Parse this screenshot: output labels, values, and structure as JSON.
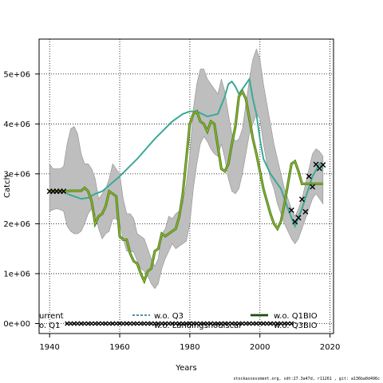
{
  "chart_data": {
    "type": "line",
    "xlabel": "Years",
    "ylabel": "Catch",
    "xlim": [
      1937,
      2021
    ],
    "ylim": [
      -200000,
      5700000
    ],
    "x_ticks": [
      1940,
      1960,
      1980,
      2000,
      2020
    ],
    "x_tick_labels": [
      "1940",
      "1960",
      "1980",
      "2000",
      "2020"
    ],
    "y_ticks": [
      0,
      1000000,
      2000000,
      3000000,
      4000000,
      5000000
    ],
    "y_tick_labels": [
      "0e+00",
      "1e+06",
      "2e+06",
      "3e+06",
      "4e+06",
      "5e+06"
    ],
    "grid": true,
    "colors": {
      "band": "#bebebe",
      "band_edge": "#8f8f8f",
      "median": "#4a8a2e",
      "median_core": "#b5b51e",
      "current_teal": "#3aaa96",
      "q3_dash": "#1a6b8a",
      "cross": "#000000"
    },
    "legend_labels": {
      "current": "urrent",
      "q1": "o. Q1",
      "q3": "w.o. Q3",
      "q1bio": "w.o. Q1BIO",
      "landings": "w.o. Landingsnodiscar",
      "q3bio": "w.o. Q3BIO"
    },
    "series": [
      {
        "key": "band",
        "x": [
          1940,
          1941,
          1942,
          1943,
          1944,
          1945,
          1946,
          1947,
          1948,
          1949,
          1950,
          1951,
          1952,
          1953,
          1954,
          1955,
          1956,
          1957,
          1958,
          1959,
          1960,
          1961,
          1962,
          1963,
          1964,
          1965,
          1966,
          1967,
          1968,
          1969,
          1970,
          1971,
          1972,
          1973,
          1974,
          1975,
          1976,
          1977,
          1978,
          1979,
          1980,
          1981,
          1982,
          1983,
          1984,
          1985,
          1986,
          1987,
          1988,
          1989,
          1990,
          1991,
          1992,
          1993,
          1994,
          1995,
          1996,
          1997,
          1998,
          1999,
          2000,
          2001,
          2002,
          2003,
          2004,
          2005,
          2006,
          2007,
          2008,
          2009,
          2010,
          2011,
          2012,
          2013,
          2014,
          2015,
          2016,
          2017,
          2018
        ],
        "upper": [
          3200000,
          3100000,
          3100000,
          3100000,
          3150000,
          3600000,
          3900000,
          3950000,
          3800000,
          3400000,
          3200000,
          3200000,
          3100000,
          2900000,
          2500000,
          2600000,
          2700000,
          2900000,
          3200000,
          3100000,
          3000000,
          2500000,
          2200000,
          2200000,
          2100000,
          1800000,
          1750000,
          1700000,
          1500000,
          1300000,
          1150000,
          1300000,
          1800000,
          1900000,
          2150000,
          2100000,
          2200000,
          2250000,
          2400000,
          2800000,
          3400000,
          4300000,
          4800000,
          5100000,
          5100000,
          4900000,
          4800000,
          4700000,
          4600000,
          4900000,
          4650000,
          4200000,
          3800000,
          3650000,
          3700000,
          3900000,
          4400000,
          4900000,
          5300000,
          5500000,
          5300000,
          4800000,
          4400000,
          4000000,
          3600000,
          3300000,
          3000000,
          2700000,
          2500000,
          2300000,
          2150000,
          2300000,
          2500000,
          2800000,
          3100000,
          3400000,
          3500000,
          3450000,
          3350000
        ],
        "lower": [
          2250000,
          2280000,
          2300000,
          2280000,
          2250000,
          1950000,
          1850000,
          1800000,
          1800000,
          1850000,
          2000000,
          2200000,
          2300000,
          2200000,
          1900000,
          1700000,
          1800000,
          1850000,
          2100000,
          2100000,
          2000000,
          1700000,
          1450000,
          1450000,
          1430000,
          1250000,
          1100000,
          1050000,
          950000,
          800000,
          700000,
          800000,
          1100000,
          1300000,
          1450000,
          1600000,
          1500000,
          1550000,
          1600000,
          1650000,
          2000000,
          2700000,
          3200000,
          3600000,
          3750000,
          3650000,
          3500000,
          3400000,
          3350000,
          3600000,
          3300000,
          2900000,
          2650000,
          2600000,
          2700000,
          3000000,
          3400000,
          3800000,
          4000000,
          4200000,
          4100000,
          3600000,
          3200000,
          2900000,
          2700000,
          2400000,
          2200000,
          2000000,
          1850000,
          1700000,
          1600000,
          1700000,
          1900000,
          2100000,
          2300000,
          2500000,
          2600000,
          2500000,
          2400000
        ]
      },
      {
        "key": "current",
        "x": [
          1945,
          1947,
          1949,
          1951,
          1953,
          1955,
          1960,
          1965,
          1970,
          1975,
          1978,
          1980,
          1982,
          1985,
          1988,
          1990,
          1991,
          1992,
          1993,
          1994,
          1995,
          1996,
          1997,
          1998,
          1999,
          2000,
          2001,
          2003,
          2006,
          2008,
          2010,
          2012,
          2015,
          2017,
          2018
        ],
        "values": [
          2600000,
          2550000,
          2500000,
          2520000,
          2600000,
          2650000,
          2950000,
          3300000,
          3700000,
          4050000,
          4200000,
          4250000,
          4250000,
          4150000,
          4200000,
          4550000,
          4800000,
          4850000,
          4750000,
          4600000,
          4700000,
          4800000,
          4900000,
          4500000,
          4200000,
          3700000,
          3300000,
          3000000,
          2700000,
          2300000,
          1950000,
          2300000,
          2950000,
          3200000,
          3100000
        ]
      },
      {
        "key": "median",
        "x": [
          1940,
          1941,
          1942,
          1943,
          1944,
          1945,
          1946,
          1947,
          1948,
          1949,
          1950,
          1951,
          1952,
          1953,
          1954,
          1955,
          1956,
          1957,
          1958,
          1959,
          1960,
          1961,
          1962,
          1963,
          1964,
          1965,
          1966,
          1967,
          1968,
          1969,
          1970,
          1971,
          1972,
          1973,
          1974,
          1975,
          1976,
          1977,
          1978,
          1979,
          1980,
          1981,
          1982,
          1983,
          1984,
          1985,
          1986,
          1987,
          1988,
          1989,
          1990,
          1991,
          1992,
          1993,
          1994,
          1995,
          1996,
          1997,
          1998,
          1999,
          2000,
          2001,
          2002,
          2003,
          2004,
          2005,
          2006,
          2007,
          2008,
          2009,
          2010,
          2011,
          2012,
          2013,
          2014,
          2015,
          2016,
          2017,
          2018
        ],
        "values": [
          2650000,
          2650000,
          2650000,
          2650000,
          2650000,
          2650000,
          2660000,
          2660000,
          2660000,
          2660000,
          2720000,
          2650000,
          2450000,
          2000000,
          2150000,
          2200000,
          2350000,
          2650000,
          2600000,
          2550000,
          1750000,
          1680000,
          1680000,
          1400000,
          1250000,
          1200000,
          1000000,
          850000,
          1050000,
          1100000,
          1450000,
          1500000,
          1800000,
          1750000,
          1800000,
          1850000,
          1900000,
          2150000,
          2600000,
          3300000,
          4000000,
          4200000,
          4250000,
          4050000,
          4000000,
          3850000,
          4050000,
          4000000,
          3550000,
          3100000,
          3050000,
          3200000,
          3600000,
          3950000,
          4550000,
          4650000,
          4500000,
          4100000,
          3700000,
          3400000,
          3050000,
          2700000,
          2450000,
          2200000,
          2000000,
          1900000,
          2050000,
          2400000,
          2800000,
          3200000,
          3250000,
          3050000,
          2800000,
          2800000,
          2800000,
          2800000,
          2800000,
          2800000,
          2800000
        ]
      },
      {
        "key": "observed",
        "x": [
          2009,
          2010,
          2011,
          2012,
          2013,
          2014,
          2015,
          2016,
          2017,
          2018
        ],
        "values": [
          2270000,
          2040000,
          2120000,
          2490000,
          2240000,
          2950000,
          2740000,
          3190000,
          3110000,
          3180000
        ]
      },
      {
        "key": "landings_nodiscard",
        "x": [
          1940,
          1941,
          1942,
          1943,
          1944
        ],
        "values": [
          2650000,
          2650000,
          2650000,
          2650000,
          2650000
        ]
      },
      {
        "key": "zero_row",
        "x_start": 1945,
        "x_end": 2009,
        "values_all": 0
      }
    ]
  },
  "footer_text": "stockassessment.org, sdt:27.3a47d, r11261 , git: a136ba0d496c"
}
